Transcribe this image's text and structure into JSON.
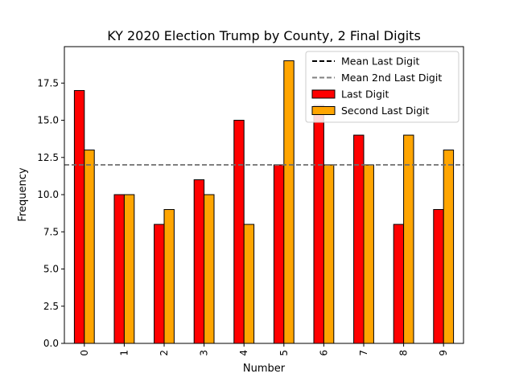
{
  "chart_data": {
    "type": "bar",
    "title": "KY 2020 Election Trump by County, 2 Final Digits",
    "xlabel": "Number",
    "ylabel": "Frequency",
    "categories": [
      "0",
      "1",
      "2",
      "3",
      "4",
      "5",
      "6",
      "7",
      "8",
      "9"
    ],
    "series": [
      {
        "name": "Last Digit",
        "color": "#ff0000",
        "values": [
          17,
          10,
          8,
          11,
          15,
          12,
          16,
          14,
          8,
          9
        ]
      },
      {
        "name": "Second Last Digit",
        "color": "#ffa500",
        "values": [
          13,
          10,
          9,
          10,
          8,
          19,
          12,
          12,
          14,
          13
        ]
      }
    ],
    "reference_lines": [
      {
        "name": "Mean Last Digit",
        "value": 12,
        "color": "#000000",
        "style": "dashed"
      },
      {
        "name": "Mean 2nd Last Digit",
        "value": 12,
        "color": "#808080",
        "style": "dashed"
      }
    ],
    "ylim": [
      0,
      19.95
    ],
    "yticks": [
      "0.0",
      "2.5",
      "5.0",
      "7.5",
      "10.0",
      "12.5",
      "15.0",
      "17.5"
    ],
    "ytick_values": [
      0,
      2.5,
      5,
      7.5,
      10,
      12.5,
      15,
      17.5
    ],
    "grid": false,
    "legend_position": "top-right"
  }
}
